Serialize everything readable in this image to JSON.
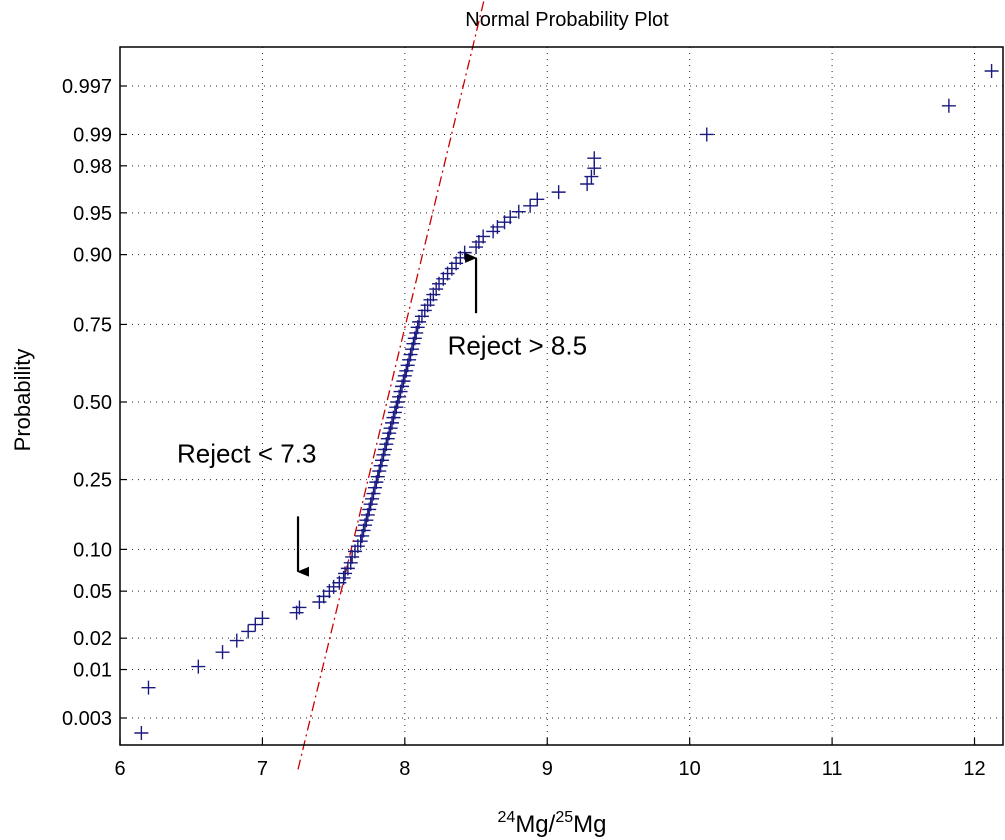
{
  "chart_data": {
    "type": "scatter",
    "title": "Normal Probability Plot",
    "xlabel": {
      "prefix1": "24",
      "base1": "Mg/",
      "prefix2": "25",
      "base2": "Mg"
    },
    "ylabel": "Probability",
    "xlim": [
      6,
      12.2
    ],
    "y_scale": "normal-probability",
    "xticks": [
      6,
      7,
      8,
      9,
      10,
      11,
      12
    ],
    "xtick_labels": [
      "6",
      "7",
      "8",
      "9",
      "10",
      "11",
      "12"
    ],
    "yticks": [
      0.003,
      0.01,
      0.02,
      0.05,
      0.1,
      0.25,
      0.5,
      0.75,
      0.9,
      0.95,
      0.98,
      0.99,
      0.997
    ],
    "ytick_labels": [
      "0.003",
      "0.01",
      "0.02",
      "0.05",
      "0.10",
      "0.25",
      "0.50",
      "0.75",
      "0.90",
      "0.95",
      "0.98",
      "0.99",
      "0.997"
    ],
    "grid": true,
    "marker_color": "#1a1a80",
    "fit_line_color": "#cc0000",
    "fit_line": {
      "style": "dash-dot",
      "x": [
        7.25,
        8.6
      ],
      "p": [
        0.0007,
        0.9999
      ]
    },
    "series": [
      {
        "marker": "plus",
        "x": [
          6.15,
          6.2,
          6.55,
          6.72,
          6.82,
          6.9,
          6.95,
          7.0,
          7.24,
          7.26,
          7.4,
          7.43,
          7.47,
          7.5,
          7.54,
          7.57,
          7.58,
          7.6,
          7.62,
          7.63,
          7.65,
          7.67,
          7.69,
          7.7,
          7.71,
          7.72,
          7.73,
          7.74,
          7.75,
          7.76,
          7.77,
          7.78,
          7.79,
          7.8,
          7.81,
          7.82,
          7.83,
          7.84,
          7.85,
          7.86,
          7.87,
          7.88,
          7.89,
          7.9,
          7.91,
          7.92,
          7.93,
          7.94,
          7.95,
          7.96,
          7.97,
          7.98,
          7.99,
          8.0,
          8.01,
          8.02,
          8.03,
          8.04,
          8.05,
          8.06,
          8.07,
          8.08,
          8.09,
          8.1,
          8.12,
          8.14,
          8.16,
          8.18,
          8.2,
          8.22,
          8.24,
          8.27,
          8.3,
          8.33,
          8.36,
          8.39,
          8.42,
          8.5,
          8.52,
          8.55,
          8.62,
          8.65,
          8.7,
          8.74,
          8.8,
          8.88,
          8.93,
          9.08,
          9.28,
          9.31,
          9.33,
          9.33,
          10.12,
          11.82,
          12.12
        ],
        "p": [
          0.002,
          0.0065,
          0.0107,
          0.0148,
          0.019,
          0.023,
          0.0265,
          0.03,
          0.0335,
          0.037,
          0.041,
          0.0455,
          0.05,
          0.054,
          0.058,
          0.063,
          0.068,
          0.074,
          0.081,
          0.089,
          0.097,
          0.105,
          0.113,
          0.122,
          0.132,
          0.142,
          0.152,
          0.163,
          0.175,
          0.187,
          0.2,
          0.213,
          0.228,
          0.243,
          0.258,
          0.274,
          0.29,
          0.306,
          0.323,
          0.34,
          0.357,
          0.375,
          0.393,
          0.41,
          0.428,
          0.446,
          0.464,
          0.482,
          0.5,
          0.518,
          0.536,
          0.554,
          0.572,
          0.59,
          0.607,
          0.625,
          0.643,
          0.66,
          0.677,
          0.694,
          0.71,
          0.726,
          0.742,
          0.757,
          0.772,
          0.787,
          0.8,
          0.813,
          0.825,
          0.837,
          0.848,
          0.858,
          0.868,
          0.877,
          0.886,
          0.895,
          0.903,
          0.911,
          0.918,
          0.925,
          0.931,
          0.936,
          0.941,
          0.946,
          0.951,
          0.956,
          0.961,
          0.966,
          0.971,
          0.975,
          0.979,
          0.983,
          0.99,
          0.995,
          0.998
        ]
      }
    ],
    "annotations": [
      {
        "text": "Reject > 8.5",
        "arrow_x": 8.5,
        "arrow_from_p": 0.78,
        "arrow_to_p": 0.895,
        "label_x": 8.3,
        "label_p": 0.66
      },
      {
        "text": "Reject < 7.3",
        "arrow_x": 7.25,
        "arrow_from_p": 0.16,
        "arrow_to_p": 0.07,
        "label_x": 6.4,
        "label_p": 0.3
      }
    ]
  }
}
